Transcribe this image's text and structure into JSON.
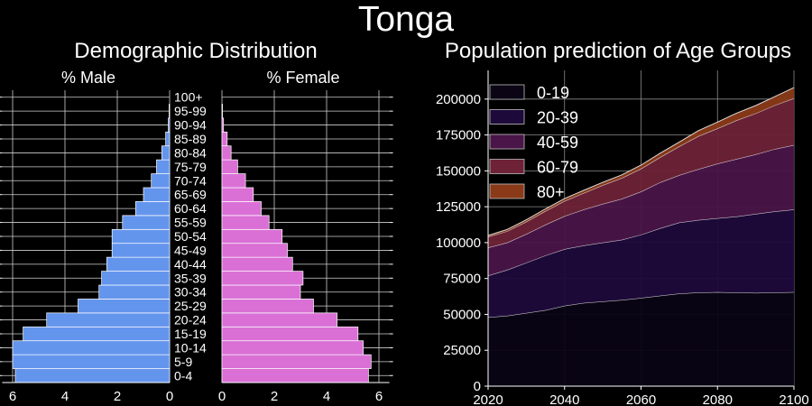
{
  "suptitle": "Tonga",
  "colors": {
    "background": "#000000",
    "male_bar": "#6495ED",
    "female_bar": "#DA70D6",
    "area": [
      "#0a0414",
      "#1d0a3a",
      "#4a1548",
      "#6e2238",
      "#8a3a18"
    ]
  },
  "chart_data": [
    {
      "type": "bar",
      "orientation": "horizontal",
      "title": "Demographic Distribution",
      "age_groups": [
        "0-4",
        "5-9",
        "10-14",
        "15-19",
        "20-24",
        "25-29",
        "30-34",
        "35-39",
        "40-44",
        "45-49",
        "50-54",
        "55-59",
        "60-64",
        "65-69",
        "70-74",
        "75-79",
        "80-84",
        "85-89",
        "90-94",
        "95-99",
        "100+"
      ],
      "series": [
        {
          "name": "% Male",
          "values": [
            5.9,
            6.0,
            6.0,
            5.6,
            4.7,
            3.5,
            2.7,
            2.6,
            2.4,
            2.2,
            2.2,
            1.8,
            1.3,
            1.0,
            0.7,
            0.5,
            0.3,
            0.15,
            0.05,
            0.02,
            0.0
          ]
        },
        {
          "name": "% Female",
          "values": [
            5.6,
            5.7,
            5.4,
            5.2,
            4.4,
            3.5,
            3.0,
            3.1,
            2.7,
            2.5,
            2.3,
            1.8,
            1.5,
            1.2,
            0.9,
            0.6,
            0.35,
            0.2,
            0.06,
            0.02,
            0.0
          ]
        }
      ],
      "xlim": [
        0,
        6.4
      ],
      "xticks": [
        0,
        2,
        4,
        6
      ],
      "grid": true
    },
    {
      "type": "area",
      "stacked": true,
      "title": "Population prediction of Age Groups",
      "x": [
        2020,
        2025,
        2030,
        2035,
        2040,
        2045,
        2050,
        2055,
        2060,
        2065,
        2070,
        2075,
        2080,
        2085,
        2090,
        2095,
        2100
      ],
      "series": [
        {
          "name": "0-19",
          "values": [
            48000,
            49000,
            51000,
            53000,
            56000,
            58000,
            59000,
            60000,
            61500,
            63000,
            64500,
            65200,
            65500,
            65200,
            65000,
            65200,
            65500
          ]
        },
        {
          "name": "20-39",
          "values": [
            29000,
            32000,
            35000,
            38000,
            39500,
            40000,
            41000,
            42000,
            44000,
            47000,
            49500,
            50500,
            51500,
            53000,
            55000,
            56500,
            57500
          ]
        },
        {
          "name": "40-59",
          "values": [
            19500,
            19000,
            20000,
            21500,
            23000,
            25000,
            27000,
            28500,
            30000,
            32000,
            33000,
            35500,
            38000,
            40000,
            41500,
            43500,
            45000
          ]
        },
        {
          "name": "60-79",
          "values": [
            7500,
            8000,
            8500,
            9500,
            10500,
            11500,
            13000,
            14500,
            16000,
            17500,
            20000,
            23000,
            24500,
            27000,
            28500,
            30500,
            32500
          ]
        },
        {
          "name": "80+",
          "values": [
            1000,
            1200,
            1400,
            1500,
            1700,
            1900,
            2000,
            2200,
            2500,
            2800,
            3100,
            3800,
            4500,
            5000,
            5500,
            6000,
            7500
          ]
        }
      ],
      "xlim": [
        2020,
        2100
      ],
      "ylim": [
        0,
        220000
      ],
      "xticks": [
        2020,
        2040,
        2060,
        2080,
        2100
      ],
      "yticks": [
        0,
        25000,
        50000,
        75000,
        100000,
        125000,
        150000,
        175000,
        200000
      ],
      "legend": "top-left",
      "grid": true
    }
  ]
}
